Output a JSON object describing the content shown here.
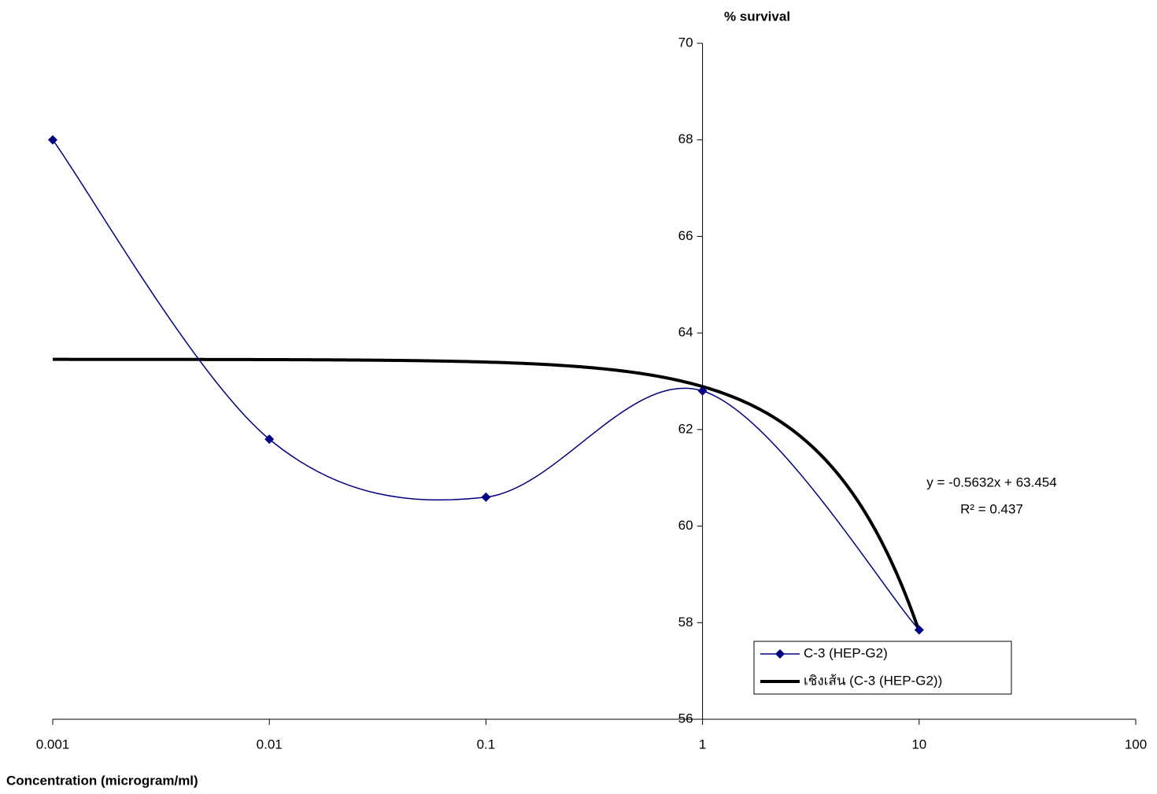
{
  "chart_data": {
    "type": "line",
    "y_title": "% survival",
    "x_title": "Concentration (microgram/ml)",
    "x_log": true,
    "x": [
      0.001,
      0.01,
      0.1,
      1,
      10
    ],
    "xlim": [
      0.001,
      100
    ],
    "xticks": [
      0.001,
      0.01,
      0.1,
      1,
      10,
      100
    ],
    "ylim": [
      56,
      70
    ],
    "yticks": [
      56,
      58,
      60,
      62,
      64,
      66,
      68,
      70
    ],
    "y_axis_crosses_x": 1,
    "smooth": true,
    "series": [
      {
        "name": "C-3 (HEP-G2)",
        "color": "#000080",
        "values": [
          68,
          61.8,
          60.6,
          62.8,
          57.85
        ]
      }
    ],
    "trendline": {
      "name": "เชิงเส้น (C-3 (HEP-G2))",
      "color": "#000000",
      "slope": -0.5632,
      "intercept": 63.454,
      "equation_label": "y = -0.5632x + 63.454",
      "r2_label": "R² = 0.437"
    }
  }
}
